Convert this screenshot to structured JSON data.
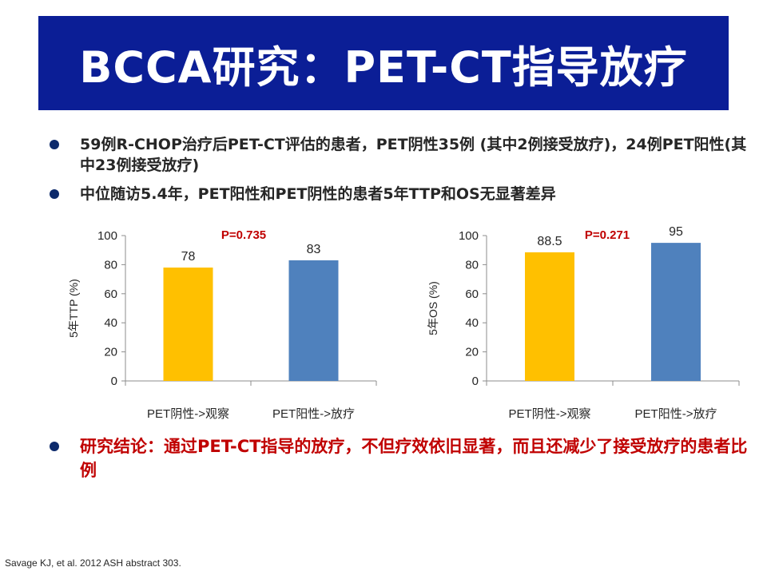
{
  "title": "BCCA研究：PET-CT指导放疗",
  "bullets": [
    "59例R-CHOP治疗后PET-CT评估的患者，PET阴性35例 (其中2例接受放疗)，24例PET阳性(其中23例接受放疗)",
    "中位随访5.4年，PET阳性和PET阴性的患者5年TTP和OS无显著差异"
  ],
  "conclusion": "研究结论：通过PET-CT指导的放疗，不但疗效依旧显著，而且还减少了接受放疗的患者比例",
  "citation": "Savage KJ, et al. 2012 ASH abstract 303.",
  "colors": {
    "banner": "#0b1e96",
    "bar_observe": "#ffc000",
    "bar_radio": "#4f81bd",
    "p_value": "#c00000",
    "conclusion": "#c00000",
    "bullet_dot": "#0d2a6b"
  },
  "chart_data": [
    {
      "type": "bar",
      "categories": [
        "PET阴性->观察",
        "PET阳性->放疗"
      ],
      "values": [
        78,
        83
      ],
      "value_labels": [
        "78",
        "83"
      ],
      "ylabel": "5年TTP (%)",
      "ylim": [
        0,
        100
      ],
      "yticks": [
        0,
        20,
        40,
        60,
        80,
        100
      ],
      "annotation": "P=0.735",
      "grid": false
    },
    {
      "type": "bar",
      "categories": [
        "PET阴性->观察",
        "PET阳性->放疗"
      ],
      "values": [
        88.5,
        95
      ],
      "value_labels": [
        "88.5",
        "95"
      ],
      "ylabel": "5年OS (%)",
      "ylim": [
        0,
        100
      ],
      "yticks": [
        0,
        20,
        40,
        60,
        80,
        100
      ],
      "annotation": "P=0.271",
      "grid": false
    }
  ]
}
